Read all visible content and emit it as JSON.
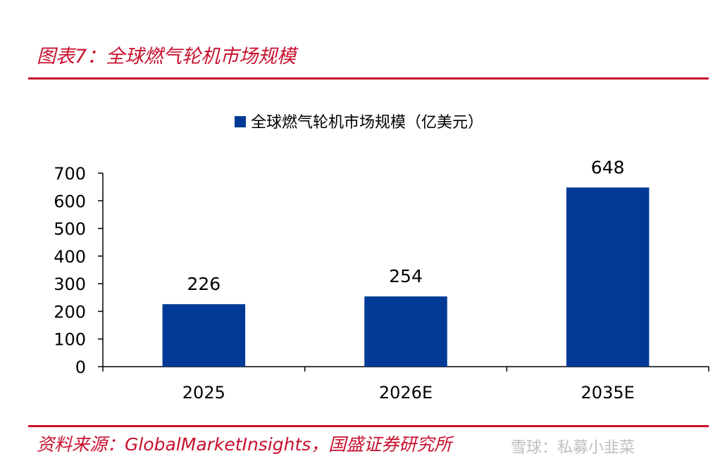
{
  "figure_title": "图表7：全球燃气轮机市场规模",
  "source_text": "资料来源：GlobalMarketInsights，国盛证券研究所",
  "watermark_text": "雪球：私募小韭菜",
  "colors": {
    "accent_red": "#c8102e",
    "bar": "#003a96",
    "axis": "#000000"
  },
  "chart_data": {
    "type": "bar",
    "categories": [
      "2025",
      "2026E",
      "2035E"
    ],
    "series": [
      {
        "name": "全球燃气轮机市场规模（亿美元）",
        "values": [
          226,
          254,
          648
        ]
      }
    ],
    "data_labels": [
      "226",
      "254",
      "648"
    ],
    "y_ticks": [
      0,
      100,
      200,
      300,
      400,
      500,
      600,
      700
    ],
    "ylim": [
      0,
      700
    ],
    "grid": false,
    "legend_position": "top-center"
  }
}
